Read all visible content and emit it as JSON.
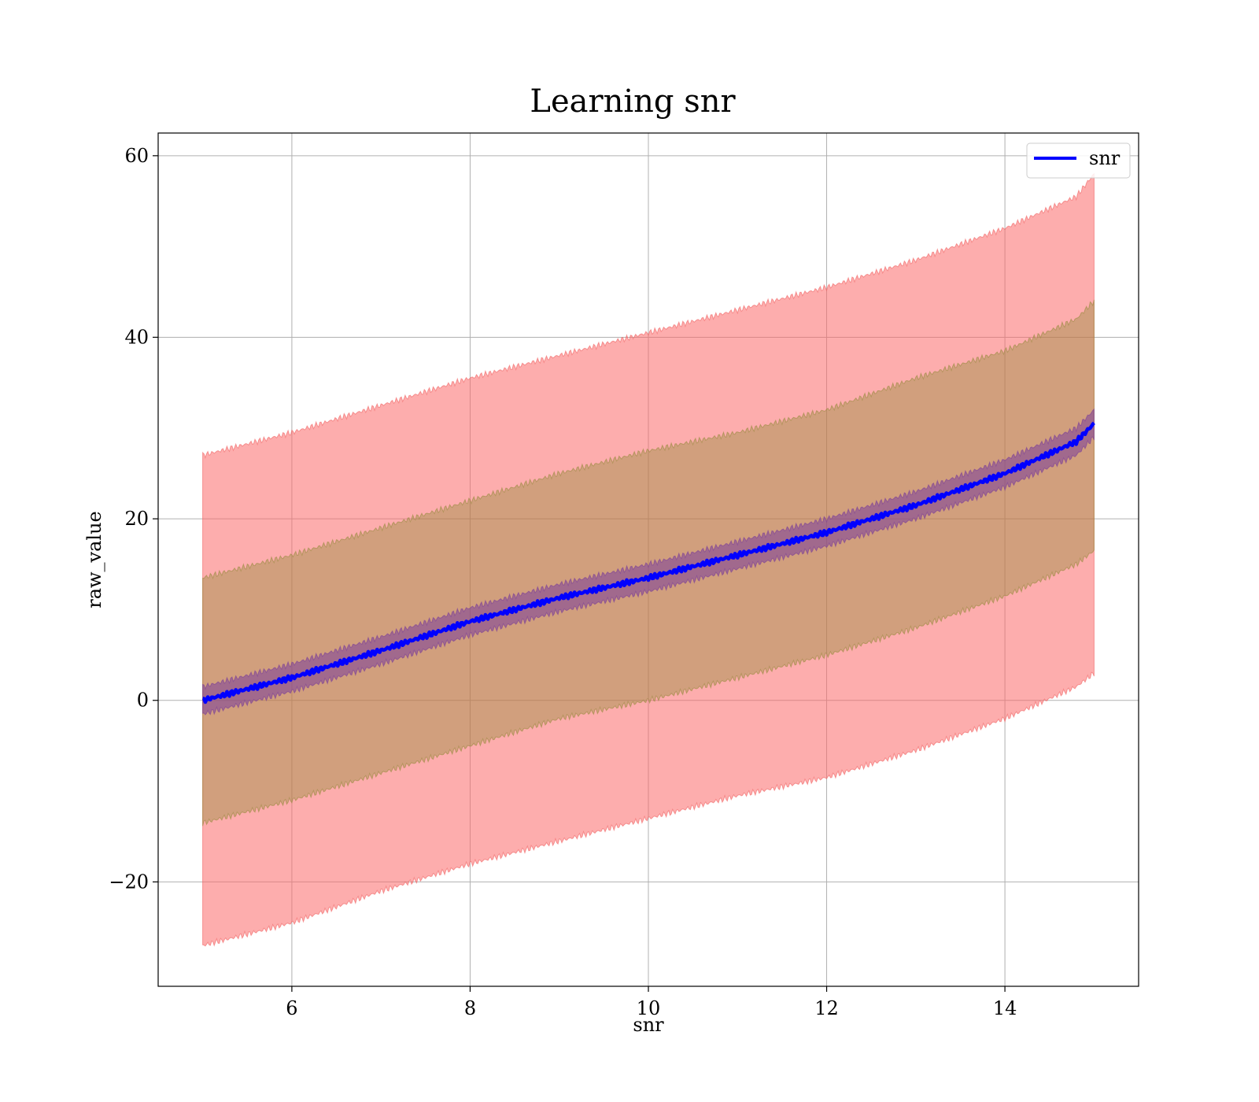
{
  "chart_data": {
    "type": "line",
    "title": "Learning snr",
    "xlabel": "snr",
    "ylabel": "raw_value",
    "xlim": [
      4.5,
      15.5
    ],
    "ylim": [
      -31.5,
      62.5
    ],
    "xticks": [
      6,
      8,
      10,
      12,
      14
    ],
    "xtick_labels": [
      "6",
      "8",
      "10",
      "12",
      "14"
    ],
    "yticks": [
      -20,
      0,
      20,
      40,
      60
    ],
    "ytick_labels": [
      "−20",
      "0",
      "20",
      "40",
      "60"
    ],
    "grid": true,
    "legend": {
      "position": "top-right",
      "entries": [
        "snr"
      ]
    },
    "series": [
      {
        "name": "snr",
        "color": "#0000ff",
        "x": [
          5,
          6,
          7,
          8,
          9,
          10,
          11,
          12,
          13,
          14,
          14.8,
          15
        ],
        "y": [
          0,
          2.5,
          5.5,
          8.7,
          11.3,
          13.5,
          16.0,
          18.5,
          21.5,
          25.0,
          28.5,
          30.5
        ]
      }
    ],
    "bands": [
      {
        "color": "#fb6a6a",
        "opacity": 0.55,
        "edge": "#f06060",
        "x": [
          5,
          6,
          7,
          8,
          9,
          10,
          11,
          12,
          13,
          14,
          14.8,
          15
        ],
        "lower": [
          -27.0,
          -24.5,
          -21.0,
          -18.0,
          -15.5,
          -13.0,
          -10.5,
          -8.5,
          -5.5,
          -2.0,
          1.5,
          3.0
        ],
        "upper": [
          27.0,
          29.5,
          32.5,
          35.5,
          38.0,
          40.5,
          43.0,
          45.5,
          48.5,
          52.0,
          55.5,
          58.0
        ]
      },
      {
        "color": "#8a8a30",
        "opacity": 0.38,
        "edge": "#9a8a40",
        "x": [
          5,
          6,
          7,
          8,
          9,
          10,
          11,
          12,
          13,
          14,
          14.8,
          15
        ],
        "lower": [
          -13.5,
          -11.0,
          -8.0,
          -5.0,
          -2.0,
          0.0,
          2.5,
          5.0,
          8.0,
          11.5,
          15.0,
          16.5
        ],
        "upper": [
          13.5,
          16.0,
          19.0,
          22.0,
          25.0,
          27.5,
          29.5,
          32.0,
          35.5,
          38.5,
          42.0,
          44.0
        ]
      },
      {
        "color": "#7a3d9a",
        "opacity": 0.55,
        "edge": "#7a3d9a",
        "x": [
          5,
          6,
          7,
          8,
          9,
          10,
          11,
          12,
          13,
          14,
          14.8,
          15
        ],
        "lower": [
          -1.5,
          1.0,
          4.0,
          7.2,
          9.8,
          12.0,
          14.5,
          17.0,
          20.0,
          23.5,
          27.0,
          29.0
        ],
        "upper": [
          1.5,
          4.0,
          7.0,
          10.2,
          12.8,
          15.0,
          17.5,
          20.0,
          23.0,
          26.5,
          30.0,
          32.0
        ]
      }
    ]
  }
}
